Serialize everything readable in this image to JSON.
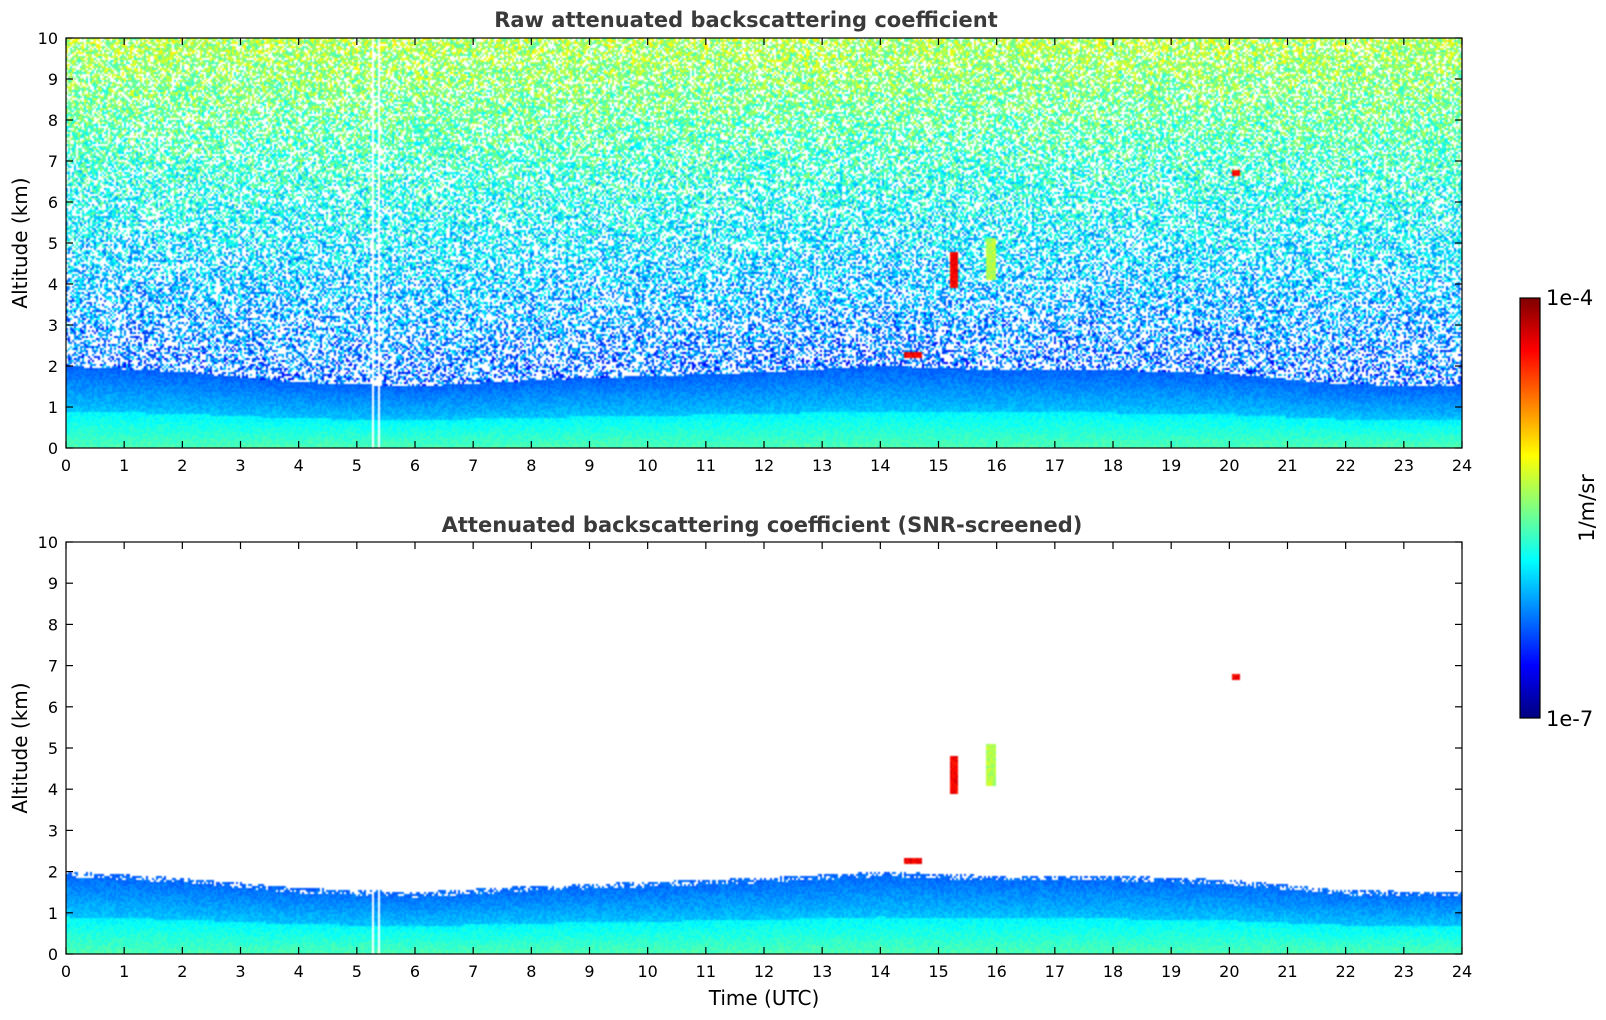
{
  "figure": {
    "xlabel": "Time (UTC)"
  },
  "chart_data": [
    {
      "type": "heatmap",
      "title": "Raw attenuated backscattering coefficient",
      "xlabel": "",
      "ylabel": "Altitude (km)",
      "xlim": [
        0,
        24
      ],
      "ylim": [
        0,
        10
      ],
      "x_ticks": [
        0,
        1,
        2,
        3,
        4,
        5,
        6,
        7,
        8,
        9,
        10,
        11,
        12,
        13,
        14,
        15,
        16,
        17,
        18,
        19,
        20,
        21,
        22,
        23,
        24
      ],
      "y_ticks": [
        0,
        1,
        2,
        3,
        4,
        5,
        6,
        7,
        8,
        9,
        10
      ],
      "grid": false,
      "features": [
        {
          "kind": "boundary_layer",
          "top_km": [
            [
              0,
              2.0
            ],
            [
              2,
              1.85
            ],
            [
              4,
              1.6
            ],
            [
              6,
              1.5
            ],
            [
              8,
              1.65
            ],
            [
              12,
              1.85
            ],
            [
              14,
              2.0
            ],
            [
              16,
              1.9
            ],
            [
              18,
              1.9
            ],
            [
              20,
              1.8
            ],
            [
              22,
              1.55
            ],
            [
              24,
              1.5
            ]
          ]
        },
        {
          "kind": "cloud",
          "time_utc": [
            14.4,
            14.7
          ],
          "alt_km": [
            2.2,
            2.35
          ],
          "level": "high"
        },
        {
          "kind": "cloud",
          "time_utc": [
            15.2,
            15.35
          ],
          "alt_km": [
            3.9,
            4.8
          ],
          "level": "high"
        },
        {
          "kind": "cloud",
          "time_utc": [
            15.8,
            16.0
          ],
          "alt_km": [
            4.1,
            5.1
          ],
          "level": "medium"
        },
        {
          "kind": "cloud",
          "time_utc": [
            20.05,
            20.2
          ],
          "alt_km": [
            6.65,
            6.8
          ],
          "level": "high"
        },
        {
          "kind": "data_gap",
          "time_utc": [
            5.25,
            5.4
          ]
        }
      ]
    },
    {
      "type": "heatmap",
      "title": "Attenuated backscattering coefficient (SNR-screened)",
      "xlabel": "Time (UTC)",
      "ylabel": "Altitude (km)",
      "xlim": [
        0,
        24
      ],
      "ylim": [
        0,
        10
      ],
      "x_ticks": [
        0,
        1,
        2,
        3,
        4,
        5,
        6,
        7,
        8,
        9,
        10,
        11,
        12,
        13,
        14,
        15,
        16,
        17,
        18,
        19,
        20,
        21,
        22,
        23,
        24
      ],
      "y_ticks": [
        0,
        1,
        2,
        3,
        4,
        5,
        6,
        7,
        8,
        9,
        10
      ],
      "grid": false,
      "features": [
        {
          "kind": "boundary_layer",
          "top_km": [
            [
              0,
              2.0
            ],
            [
              2,
              1.85
            ],
            [
              4,
              1.6
            ],
            [
              6,
              1.5
            ],
            [
              8,
              1.65
            ],
            [
              12,
              1.85
            ],
            [
              14,
              2.0
            ],
            [
              16,
              1.9
            ],
            [
              18,
              1.9
            ],
            [
              20,
              1.8
            ],
            [
              22,
              1.55
            ],
            [
              24,
              1.5
            ]
          ]
        },
        {
          "kind": "cloud",
          "time_utc": [
            14.4,
            14.7
          ],
          "alt_km": [
            2.2,
            2.35
          ],
          "level": "high"
        },
        {
          "kind": "cloud",
          "time_utc": [
            15.2,
            15.35
          ],
          "alt_km": [
            3.9,
            4.8
          ],
          "level": "high"
        },
        {
          "kind": "cloud",
          "time_utc": [
            15.8,
            16.0
          ],
          "alt_km": [
            4.1,
            5.1
          ],
          "level": "medium"
        },
        {
          "kind": "cloud",
          "time_utc": [
            20.05,
            20.2
          ],
          "alt_km": [
            6.65,
            6.8
          ],
          "level": "high"
        },
        {
          "kind": "data_gap",
          "time_utc": [
            5.25,
            5.4
          ]
        }
      ]
    }
  ],
  "colorbar": {
    "max_label": "1e-4",
    "min_label": "1e-7",
    "unit_label": "1/m/sr",
    "scale": "log",
    "range": [
      1e-07,
      0.0001
    ],
    "colormap": [
      "#00007f",
      "#0000ff",
      "#0080ff",
      "#00ffff",
      "#80ff80",
      "#ffff00",
      "#ff8000",
      "#ff0000",
      "#7f0000"
    ]
  }
}
